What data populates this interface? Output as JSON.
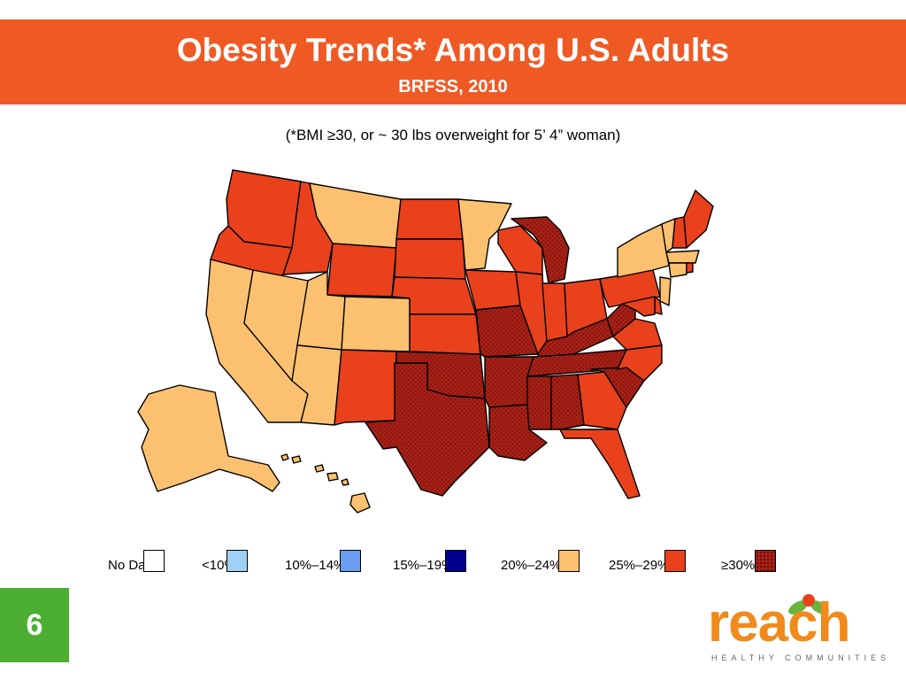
{
  "header": {
    "title": "Obesity Trends* Among U.S. Adults",
    "subtitle": "BRFSS, 2010"
  },
  "note": "(*BMI ≥30, or ~ 30 lbs overweight for 5’ 4” woman)",
  "legend": [
    {
      "label": "No Data",
      "color": "#ffffff",
      "pattern": "none"
    },
    {
      "label": "<10%",
      "color": "#9fd0f5",
      "pattern": "none"
    },
    {
      "label": "10%–14%",
      "color": "#6a9cf2",
      "pattern": "none"
    },
    {
      "label": "15%–19%",
      "color": "#00008f",
      "pattern": "none"
    },
    {
      "label": "20%–24%",
      "color": "#fcc170",
      "pattern": "none"
    },
    {
      "label": "25%–29%",
      "color": "#e8411c",
      "pattern": "none"
    },
    {
      "label": "≥30%",
      "color": "#a72016",
      "pattern": "dots"
    }
  ],
  "states": {
    "WA": "25-29",
    "OR": "25-29",
    "CA": "20-24",
    "NV": "20-24",
    "ID": "25-29",
    "MT": "20-24",
    "WY": "25-29",
    "UT": "20-24",
    "AZ": "20-24",
    "CO": "20-24",
    "NM": "25-29",
    "ND": "25-29",
    "SD": "25-29",
    "NE": "25-29",
    "KS": "25-29",
    "OK": "30+",
    "TX": "30+",
    "MN": "20-24",
    "IA": "25-29",
    "MO": "30+",
    "AR": "30+",
    "LA": "30+",
    "WI": "25-29",
    "IL": "25-29",
    "MI": "30+",
    "IN": "25-29",
    "OH": "25-29",
    "KY": "30+",
    "TN": "30+",
    "MS": "30+",
    "AL": "30+",
    "GA": "25-29",
    "FL": "25-29",
    "SC": "30+",
    "NC": "25-29",
    "VA": "25-29",
    "WV": "30+",
    "PA": "25-29",
    "NY": "20-24",
    "VT": "20-24",
    "NH": "25-29",
    "ME": "25-29",
    "MA": "20-24",
    "CT": "20-24",
    "RI": "25-29",
    "NJ": "20-24",
    "DE": "25-29",
    "MD": "25-29",
    "AK": "20-24",
    "HI": "20-24"
  },
  "page_number": "6",
  "logo": {
    "name": "reach",
    "tagline": "HEALTHY COMMUNITIES"
  }
}
